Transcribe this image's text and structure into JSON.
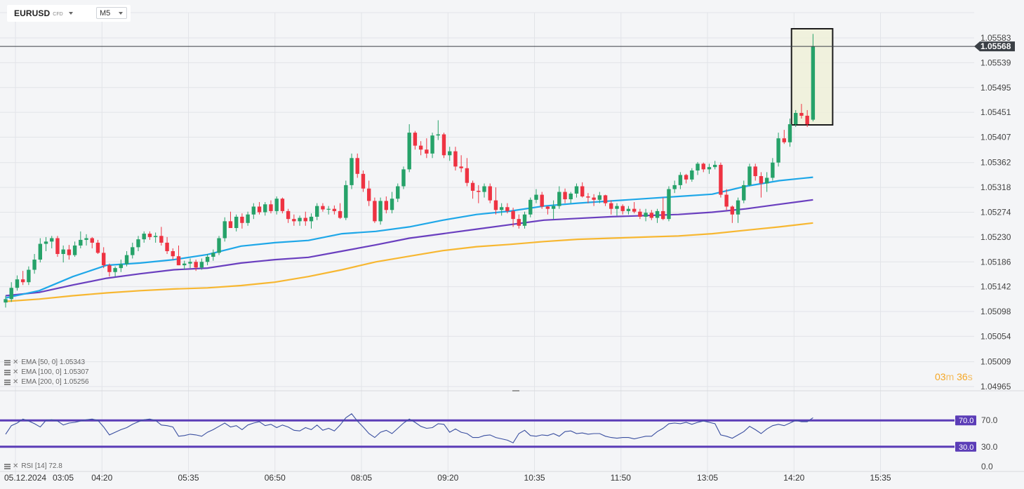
{
  "toolbar": {
    "symbol": "EURUSD",
    "instrument_type": "CFD",
    "timeframe": "M5"
  },
  "countdown": {
    "minutes": "03",
    "minutes_unit": "m",
    "seconds": "36",
    "seconds_unit": "s"
  },
  "colors": {
    "bull": "#26a269",
    "bear": "#ee3342",
    "ema50": "#1ea7e8",
    "ema100": "#6a3fbf",
    "ema200": "#f7b731",
    "rsi_line": "#3a4fa0",
    "rsi_band": "#5b3db7",
    "highlight_fill": "#eef0d8",
    "highlight_border": "#1c1c1c",
    "price_tag": "#3b4046",
    "grid": "#e2e4e8"
  },
  "chart_data": [
    {
      "type": "candlestick",
      "symbol": "EURUSD",
      "timeframe": "M5",
      "date_label": "05.12.2024",
      "y_ticks": [
        "1.05583",
        "1.05539",
        "1.05495",
        "1.05451",
        "1.05407",
        "1.05362",
        "1.05318",
        "1.05274",
        "1.05230",
        "1.05186",
        "1.05142",
        "1.05098",
        "1.05054",
        "1.05009",
        "1.04965"
      ],
      "ylim": [
        1.04965,
        1.05583
      ],
      "x_ticks": [
        "03:05",
        "04:20",
        "05:35",
        "06:50",
        "08:05",
        "09:20",
        "10:35",
        "11:50",
        "13:05",
        "14:20",
        "15:35"
      ],
      "current_price": "1.05568",
      "candles": [
        [
          1.05114,
          1.05126,
          1.05105,
          1.0512
        ],
        [
          1.0512,
          1.0515,
          1.05115,
          1.0514
        ],
        [
          1.0514,
          1.05162,
          1.05135,
          1.05155
        ],
        [
          1.05155,
          1.0517,
          1.05145,
          1.0515
        ],
        [
          1.0515,
          1.05178,
          1.05145,
          1.05172
        ],
        [
          1.05172,
          1.052,
          1.05165,
          1.0519
        ],
        [
          1.0519,
          1.05228,
          1.05185,
          1.05218
        ],
        [
          1.05218,
          1.0523,
          1.05205,
          1.05222
        ],
        [
          1.05222,
          1.05232,
          1.0521,
          1.05228
        ],
        [
          1.05228,
          1.05232,
          1.05195,
          1.052
        ],
        [
          1.052,
          1.05215,
          1.05185,
          1.05208
        ],
        [
          1.05208,
          1.05216,
          1.0519,
          1.05198
        ],
        [
          1.05198,
          1.05222,
          1.05195,
          1.05215
        ],
        [
          1.05215,
          1.0524,
          1.0521,
          1.05225
        ],
        [
          1.05225,
          1.05235,
          1.05215,
          1.05228
        ],
        [
          1.05228,
          1.0523,
          1.0521,
          1.0522
        ],
        [
          1.0522,
          1.05225,
          1.052,
          1.05202
        ],
        [
          1.05202,
          1.05212,
          1.05175,
          1.0518
        ],
        [
          1.0518,
          1.05183,
          1.0516,
          1.05168
        ],
        [
          1.05168,
          1.05178,
          1.0516,
          1.05175
        ],
        [
          1.05175,
          1.0519,
          1.05168,
          1.05182
        ],
        [
          1.05182,
          1.05205,
          1.05178,
          1.05198
        ],
        [
          1.05198,
          1.0522,
          1.05192,
          1.05212
        ],
        [
          1.05212,
          1.05232,
          1.05205,
          1.05226
        ],
        [
          1.05226,
          1.0524,
          1.0522,
          1.05236
        ],
        [
          1.05236,
          1.0524,
          1.05225,
          1.0523
        ],
        [
          1.0523,
          1.05238,
          1.0522,
          1.05232
        ],
        [
          1.05232,
          1.05248,
          1.05215,
          1.0522
        ],
        [
          1.0522,
          1.0523,
          1.052,
          1.05205
        ],
        [
          1.05205,
          1.0521,
          1.0519,
          1.05196
        ],
        [
          1.05196,
          1.05215,
          1.0518,
          1.0518
        ],
        [
          1.0518,
          1.05188,
          1.05172,
          1.05183
        ],
        [
          1.05183,
          1.05192,
          1.05175,
          1.05186
        ],
        [
          1.05186,
          1.0519,
          1.0517,
          1.05176
        ],
        [
          1.05176,
          1.05192,
          1.05172,
          1.05186
        ],
        [
          1.05186,
          1.052,
          1.0518,
          1.05195
        ],
        [
          1.05195,
          1.05208,
          1.05188,
          1.05202
        ],
        [
          1.05202,
          1.05232,
          1.05198,
          1.05228
        ],
        [
          1.05228,
          1.05265,
          1.05222,
          1.05258
        ],
        [
          1.05258,
          1.05275,
          1.05248,
          1.05246
        ],
        [
          1.05246,
          1.0527,
          1.0524,
          1.05266
        ],
        [
          1.05266,
          1.05272,
          1.05245,
          1.05255
        ],
        [
          1.05255,
          1.05275,
          1.0525,
          1.0527
        ],
        [
          1.0527,
          1.0529,
          1.05262,
          1.05284
        ],
        [
          1.05284,
          1.05292,
          1.0527,
          1.05274
        ],
        [
          1.05274,
          1.05292,
          1.05268,
          1.05288
        ],
        [
          1.05288,
          1.05295,
          1.05272,
          1.05276
        ],
        [
          1.05276,
          1.05302,
          1.0527,
          1.05298
        ],
        [
          1.05298,
          1.053,
          1.05272,
          1.05276
        ],
        [
          1.05276,
          1.0528,
          1.05255,
          1.05262
        ],
        [
          1.05262,
          1.0527,
          1.0525,
          1.05258
        ],
        [
          1.05258,
          1.05268,
          1.0525,
          1.05264
        ],
        [
          1.05264,
          1.05275,
          1.0525,
          1.05258
        ],
        [
          1.05258,
          1.05272,
          1.05245,
          1.05266
        ],
        [
          1.05266,
          1.0529,
          1.0526,
          1.05285
        ],
        [
          1.05285,
          1.0529,
          1.05275,
          1.05279
        ],
        [
          1.05279,
          1.05285,
          1.0527,
          1.0528
        ],
        [
          1.0528,
          1.05286,
          1.0527,
          1.05276
        ],
        [
          1.05276,
          1.0529,
          1.05262,
          1.05264
        ],
        [
          1.05264,
          1.0533,
          1.0526,
          1.05322
        ],
        [
          1.05322,
          1.05378,
          1.05315,
          1.0537
        ],
        [
          1.0537,
          1.05378,
          1.05335,
          1.05342
        ],
        [
          1.05342,
          1.05348,
          1.0531,
          1.05316
        ],
        [
          1.05316,
          1.0533,
          1.05285,
          1.05294
        ],
        [
          1.05294,
          1.053,
          1.05255,
          1.05258
        ],
        [
          1.05258,
          1.053,
          1.05252,
          1.05294
        ],
        [
          1.05294,
          1.05302,
          1.05272,
          1.05278
        ],
        [
          1.05278,
          1.0531,
          1.05272,
          1.05298
        ],
        [
          1.05298,
          1.05325,
          1.05292,
          1.0532
        ],
        [
          1.0532,
          1.05355,
          1.05315,
          1.0535
        ],
        [
          1.0535,
          1.0543,
          1.05345,
          1.05415
        ],
        [
          1.05415,
          1.05418,
          1.05385,
          1.05392
        ],
        [
          1.05392,
          1.054,
          1.05375,
          1.05385
        ],
        [
          1.05385,
          1.05405,
          1.0537,
          1.05378
        ],
        [
          1.05378,
          1.05415,
          1.0537,
          1.0541
        ],
        [
          1.0541,
          1.05437,
          1.05402,
          1.05412
        ],
        [
          1.05412,
          1.05415,
          1.0537,
          1.05375
        ],
        [
          1.05375,
          1.0539,
          1.05365,
          1.05382
        ],
        [
          1.05382,
          1.0539,
          1.05348,
          1.05355
        ],
        [
          1.05355,
          1.05375,
          1.05345,
          1.05352
        ],
        [
          1.05352,
          1.0537,
          1.0532,
          1.05326
        ],
        [
          1.05326,
          1.0533,
          1.05298,
          1.05312
        ],
        [
          1.05312,
          1.05322,
          1.0529,
          1.0531
        ],
        [
          1.0531,
          1.05325,
          1.053,
          1.0532
        ],
        [
          1.0532,
          1.05325,
          1.0529,
          1.05295
        ],
        [
          1.05295,
          1.05318,
          1.0527,
          1.05278
        ],
        [
          1.05278,
          1.0529,
          1.05268,
          1.05283
        ],
        [
          1.05283,
          1.0529,
          1.05272,
          1.05276
        ],
        [
          1.05276,
          1.05282,
          1.05248,
          1.05262
        ],
        [
          1.05262,
          1.0527,
          1.05245,
          1.0525
        ],
        [
          1.0525,
          1.05275,
          1.05245,
          1.0527
        ],
        [
          1.0527,
          1.053,
          1.05265,
          1.05296
        ],
        [
          1.05296,
          1.05315,
          1.0529,
          1.05305
        ],
        [
          1.05305,
          1.0531,
          1.0528,
          1.05284
        ],
        [
          1.05284,
          1.05285,
          1.0527,
          1.0528
        ],
        [
          1.0528,
          1.05295,
          1.05262,
          1.05285
        ],
        [
          1.05285,
          1.0532,
          1.0528,
          1.0531
        ],
        [
          1.0531,
          1.05316,
          1.0529,
          1.05297
        ],
        [
          1.05297,
          1.0531,
          1.0529,
          1.05307
        ],
        [
          1.05307,
          1.05325,
          1.053,
          1.0532
        ],
        [
          1.0532,
          1.05327,
          1.053,
          1.05302
        ],
        [
          1.05302,
          1.05308,
          1.0529,
          1.053
        ],
        [
          1.053,
          1.05306,
          1.05285,
          1.05296
        ],
        [
          1.05296,
          1.0531,
          1.0529,
          1.05304
        ],
        [
          1.05304,
          1.05305,
          1.05285,
          1.0529
        ],
        [
          1.0529,
          1.05295,
          1.0527,
          1.0528
        ],
        [
          1.0528,
          1.0529,
          1.05268,
          1.05285
        ],
        [
          1.05285,
          1.05288,
          1.0527,
          1.05276
        ],
        [
          1.05276,
          1.05285,
          1.0527,
          1.0528
        ],
        [
          1.0528,
          1.05292,
          1.05272,
          1.05275
        ],
        [
          1.05275,
          1.0528,
          1.05262,
          1.05266
        ],
        [
          1.05266,
          1.0528,
          1.05258,
          1.05273
        ],
        [
          1.05273,
          1.05278,
          1.0526,
          1.05264
        ],
        [
          1.05264,
          1.0528,
          1.05255,
          1.05276
        ],
        [
          1.05276,
          1.053,
          1.0526,
          1.05262
        ],
        [
          1.05262,
          1.0532,
          1.05258,
          1.05315
        ],
        [
          1.05315,
          1.0533,
          1.05308,
          1.05322
        ],
        [
          1.05322,
          1.05345,
          1.05315,
          1.0534
        ],
        [
          1.0534,
          1.05342,
          1.05325,
          1.05332
        ],
        [
          1.05332,
          1.05352,
          1.05328,
          1.05348
        ],
        [
          1.05348,
          1.05363,
          1.0534,
          1.0536
        ],
        [
          1.0536,
          1.05362,
          1.05345,
          1.0535
        ],
        [
          1.0535,
          1.0536,
          1.05342,
          1.05354
        ],
        [
          1.05354,
          1.05365,
          1.0535,
          1.05358
        ],
        [
          1.05358,
          1.05362,
          1.053,
          1.05305
        ],
        [
          1.05305,
          1.05315,
          1.05278,
          1.05284
        ],
        [
          1.05284,
          1.05286,
          1.05255,
          1.0527
        ],
        [
          1.0527,
          1.053,
          1.05255,
          1.05295
        ],
        [
          1.05295,
          1.0533,
          1.0529,
          1.05322
        ],
        [
          1.05322,
          1.0536,
          1.0532,
          1.05355
        ],
        [
          1.05355,
          1.0536,
          1.0533,
          1.05338
        ],
        [
          1.05338,
          1.05345,
          1.053,
          1.05325
        ],
        [
          1.05325,
          1.05345,
          1.0531,
          1.05335
        ],
        [
          1.05335,
          1.0537,
          1.0533,
          1.05362
        ],
        [
          1.05362,
          1.05415,
          1.05355,
          1.05405
        ],
        [
          1.05405,
          1.0542,
          1.05395,
          1.05398
        ],
        [
          1.05398,
          1.0544,
          1.0539,
          1.0543
        ],
        [
          1.0543,
          1.05455,
          1.05425,
          1.0545
        ],
        [
          1.0545,
          1.05466,
          1.0544,
          1.05445
        ],
        [
          1.05445,
          1.05455,
          1.05425,
          1.0543
        ],
        [
          1.05438,
          1.0559,
          1.05435,
          1.05568
        ]
      ],
      "ema50": [
        1.05122,
        1.05135,
        1.0516,
        1.0518,
        1.05184,
        1.0519,
        1.05199,
        1.05214,
        1.0522,
        1.05224,
        1.05236,
        1.0524,
        1.05248,
        1.0526,
        1.0527,
        1.05276,
        1.05285,
        1.0529,
        1.05294,
        1.05298,
        1.05302,
        1.05306,
        1.0532,
        1.0533,
        1.05336
      ],
      "ema100": [
        1.05126,
        1.05132,
        1.05145,
        1.05157,
        1.05165,
        1.05172,
        1.05175,
        1.05184,
        1.0519,
        1.05194,
        1.05205,
        1.05216,
        1.05228,
        1.05236,
        1.05244,
        1.05252,
        1.0526,
        1.05263,
        1.05266,
        1.05268,
        1.0527,
        1.05274,
        1.0528,
        1.05288,
        1.05296
      ],
      "ema200": [
        1.05116,
        1.0512,
        1.05126,
        1.05131,
        1.05135,
        1.05138,
        1.0514,
        1.05144,
        1.0515,
        1.0516,
        1.05172,
        1.05186,
        1.05196,
        1.05206,
        1.05213,
        1.05217,
        1.05222,
        1.05226,
        1.05228,
        1.0523,
        1.05232,
        1.05236,
        1.05242,
        1.05248,
        1.05255
      ],
      "indicators": [
        {
          "label": "EMA [50,  0]",
          "value": "1.05343"
        },
        {
          "label": "EMA [100,  0]",
          "value": "1.05307"
        },
        {
          "label": "EMA [200,  0]",
          "value": "1.05256"
        }
      ]
    },
    {
      "type": "line",
      "name": "RSI",
      "label": "RSI [14]",
      "value": "72.8",
      "y_ticks": [
        "70.0",
        "30.0",
        "0.0"
      ],
      "levels": [
        {
          "value": 70,
          "label": "70.0"
        },
        {
          "value": 30,
          "label": "30.0"
        }
      ],
      "ylim": [
        0,
        100
      ],
      "values": [
        49,
        62,
        66,
        72,
        69,
        65,
        60,
        70,
        71,
        69,
        63,
        66,
        67,
        69,
        71,
        72,
        70,
        60,
        48,
        52,
        56,
        59,
        64,
        68,
        71,
        72,
        70,
        63,
        62,
        60,
        46,
        47,
        49,
        48,
        46,
        52,
        56,
        61,
        66,
        60,
        62,
        56,
        63,
        66,
        68,
        62,
        64,
        59,
        63,
        60,
        55,
        54,
        59,
        56,
        63,
        55,
        58,
        54,
        63,
        74,
        80,
        69,
        60,
        50,
        44,
        52,
        55,
        50,
        58,
        66,
        72,
        67,
        61,
        58,
        59,
        65,
        64,
        52,
        57,
        52,
        50,
        44,
        44,
        47,
        48,
        44,
        42,
        40,
        36,
        50,
        55,
        47,
        46,
        48,
        47,
        50,
        46,
        53,
        54,
        50,
        51,
        49,
        50,
        50,
        46,
        44,
        43,
        44,
        44,
        42,
        44,
        46,
        46,
        53,
        58,
        65,
        66,
        65,
        67,
        64,
        67,
        69,
        67,
        65,
        48,
        46,
        43,
        48,
        53,
        61,
        56,
        50,
        57,
        62,
        64,
        62,
        66,
        70,
        68,
        68,
        74
      ]
    }
  ]
}
